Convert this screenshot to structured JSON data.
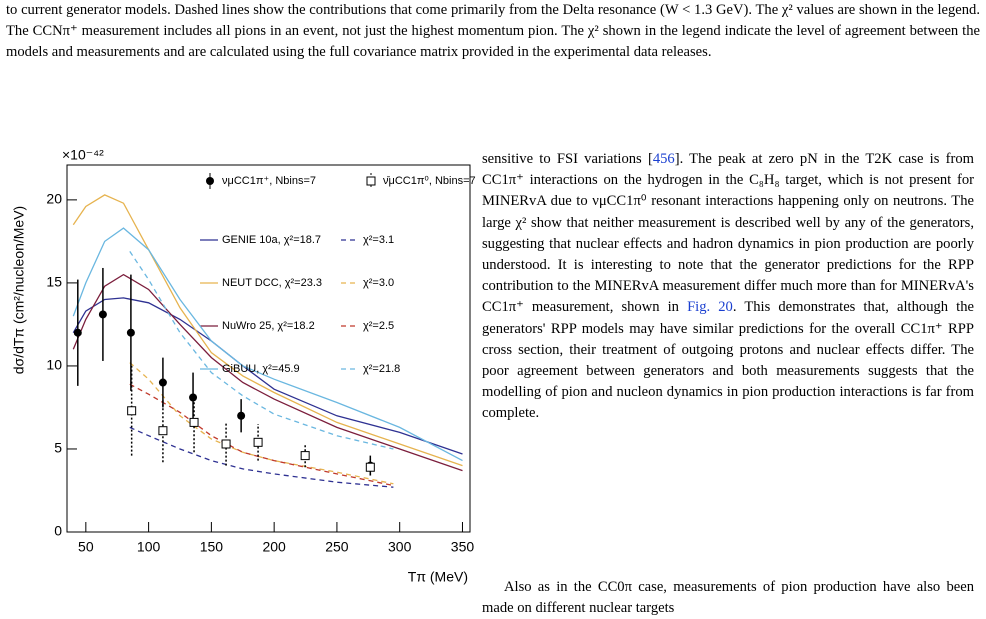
{
  "caption": "to current generator models. Dashed lines show the contributions that come primarily from the Delta resonance (W < 1.3 GeV). The χ² values are shown in the legend. The CCNπ⁺ measurement includes all pions in an event, not just the highest momentum pion. The χ² shown in the legend indicate the level of agreement between the models and measurements and are calculated using the full covariance matrix provided in the experimental data releases.",
  "body": {
    "p1": [
      "sensitive to FSI variations [",
      "456",
      "]. The peak at zero pN in the T2K case is from CC1π⁺ interactions on the hydrogen in the C₈H₈ target, which is not present for MINERvA due to νμCC1π⁰ resonant interactions happening only on neutrons. The large χ² show that neither measurement is described well by any of the generators, suggesting that nuclear effects and hadron dynamics in pion production are poorly understood. It is interesting to note that the generator predictions for the RPP contribution to the MINERvA measurement differ much more than for MINERvA's CC1π⁺ measurement, shown in ",
      "Fig. 20",
      ". This demonstrates that, although the generators' RPP models may have similar predictions for the overall CC1π⁺ RPP cross section, their treatment of outgoing protons and nuclear effects differ. The poor agreement between generators and both measurements suggests that the modelling of pion and nucleon dynamics in pion production interactions is far from complete."
    ],
    "p2": "Also as in the CC0π case, measurements of pion production have also been made on different nuclear targets"
  },
  "chart_data": {
    "type": "line",
    "multiplier": "×10⁻⁴²",
    "x_label": "Tπ (MeV)",
    "y_label": "dσ/dTπ (cm²/nucleon/MeV)",
    "xlim": [
      35,
      356
    ],
    "ylim": [
      0,
      22.1
    ],
    "xticks": [
      50,
      100,
      150,
      200,
      250,
      300,
      350
    ],
    "yticks": [
      0,
      5,
      10,
      15,
      20
    ],
    "points": [
      {
        "name": "νμCC1π⁺, Nbins=7",
        "marker": "circle",
        "x": [
          43.6,
          63.6,
          85.9,
          111.4,
          135.4,
          173.7,
          276.6
        ],
        "values": [
          12.0,
          13.1,
          12.0,
          9.0,
          8.1,
          7.0,
          4.0
        ],
        "errors": [
          3.2,
          2.8,
          3.5,
          1.5,
          1.5,
          1.0,
          0.6
        ]
      },
      {
        "name": "ν̄μCC1π⁰, Nbins=7",
        "marker": "square",
        "x": [
          86.5,
          111.4,
          136.2,
          161.7,
          187.2,
          224.7,
          276.6
        ],
        "values": [
          7.3,
          6.1,
          6.6,
          5.3,
          5.4,
          4.6,
          3.9
        ],
        "errors": [
          2.7,
          1.9,
          1.8,
          1.3,
          1.1,
          0.7,
          0.5
        ]
      }
    ],
    "series": [
      {
        "name": "GENIE 10a, χ²=18.7",
        "color": "#2e3192",
        "dashed": false,
        "x": [
          40,
          50,
          65,
          80,
          100,
          125,
          150,
          175,
          200,
          250,
          300,
          350
        ],
        "values": [
          12.0,
          13.3,
          14.0,
          14.1,
          13.8,
          12.8,
          11.5,
          10.0,
          8.6,
          7.0,
          6.0,
          4.7
        ]
      },
      {
        "name": "χ²=3.1",
        "color": "#2e3192",
        "dashed": true,
        "x": [
          85,
          100,
          125,
          150,
          175,
          200,
          250,
          295
        ],
        "values": [
          6.3,
          5.8,
          5.0,
          4.3,
          3.8,
          3.5,
          3.0,
          2.7
        ]
      },
      {
        "name": "NEUT DCC, χ²=23.3",
        "color": "#e6b34f",
        "dashed": false,
        "x": [
          40,
          50,
          65,
          80,
          100,
          125,
          150,
          175,
          200,
          250,
          300,
          350
        ],
        "values": [
          18.5,
          19.6,
          20.3,
          19.8,
          17.0,
          13.5,
          10.8,
          9.4,
          8.4,
          6.6,
          5.3,
          4.0
        ]
      },
      {
        "name": "χ²=3.0",
        "color": "#e6b34f",
        "dashed": true,
        "x": [
          85,
          100,
          125,
          150,
          175,
          200,
          250,
          295
        ],
        "values": [
          10.2,
          9.2,
          7.0,
          5.6,
          4.8,
          4.3,
          3.6,
          2.9
        ]
      },
      {
        "name": "NuWro 25, χ²=18.2",
        "color": "#7b1e3c",
        "dashed": false,
        "x": [
          40,
          50,
          65,
          80,
          100,
          125,
          150,
          175,
          200,
          250,
          300,
          350
        ],
        "values": [
          11.0,
          12.8,
          14.8,
          15.5,
          14.6,
          12.5,
          10.5,
          9.0,
          8.0,
          6.3,
          5.0,
          3.7
        ]
      },
      {
        "name": "χ²=2.5",
        "color": "#c0392b",
        "dashed": true,
        "x": [
          85,
          100,
          125,
          150,
          175,
          200,
          250,
          295
        ],
        "values": [
          8.9,
          8.3,
          7.2,
          5.8,
          4.8,
          4.3,
          3.5,
          2.8
        ]
      },
      {
        "name": "GiBUU, χ²=45.9",
        "color": "#6ab7e0",
        "dashed": false,
        "x": [
          40,
          50,
          65,
          80,
          100,
          125,
          150,
          175,
          200,
          250,
          300,
          350
        ],
        "values": [
          13.0,
          15.0,
          17.5,
          18.3,
          17.0,
          14.0,
          11.5,
          10.0,
          9.2,
          7.8,
          6.3,
          4.3
        ]
      },
      {
        "name": "χ²=21.8",
        "color": "#6ab7e0",
        "dashed": true,
        "x": [
          85,
          100,
          125,
          150,
          175,
          200,
          250,
          295
        ],
        "values": [
          16.9,
          15.2,
          12.0,
          9.6,
          8.2,
          7.1,
          5.8,
          5.0
        ]
      }
    ]
  }
}
